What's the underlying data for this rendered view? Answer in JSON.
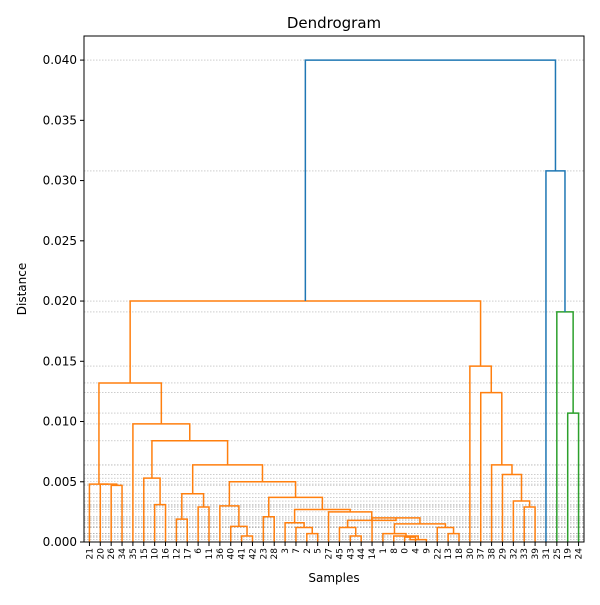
{
  "chart_data": {
    "type": "dendrogram",
    "title": "Dendrogram",
    "xlabel": "Samples",
    "ylabel": "Distance",
    "ylim": [
      0,
      0.042
    ],
    "yticks": [
      "0.000",
      "0.005",
      "0.010",
      "0.015",
      "0.020",
      "0.025",
      "0.030",
      "0.035",
      "0.040"
    ],
    "yticks_values": [
      0,
      0.005,
      0.01,
      0.015,
      0.02,
      0.025,
      0.03,
      0.035,
      0.04
    ],
    "leaf_order": [
      "21",
      "20",
      "26",
      "34",
      "35",
      "15",
      "10",
      "16",
      "12",
      "17",
      "6",
      "11",
      "36",
      "40",
      "41",
      "42",
      "23",
      "28",
      "3",
      "7",
      "2",
      "5",
      "27",
      "45",
      "43",
      "44",
      "14",
      "1",
      "8",
      "0",
      "4",
      "9",
      "22",
      "13",
      "18",
      "30",
      "37",
      "38",
      "29",
      "32",
      "33",
      "39",
      "31",
      "25",
      "19",
      "24"
    ],
    "grid_y": true,
    "colors": {
      "orange": "#ff7f0e",
      "blue": "#1f77b4",
      "green": "#2ca02c",
      "grid": "#b0b0b0"
    },
    "merges": [
      {
        "id": "M1",
        "left": "0",
        "right": "4",
        "height": 0.0004,
        "color": "orange"
      },
      {
        "id": "M2",
        "left": "M1",
        "right": "9",
        "height": 0.0002,
        "color": "orange"
      },
      {
        "id": "M3",
        "left": "8",
        "right": "M2",
        "height": 0.0005,
        "color": "orange"
      },
      {
        "id": "M4",
        "left": "1",
        "right": "M3",
        "height": 0.0007,
        "color": "orange"
      },
      {
        "id": "M5",
        "left": "13",
        "right": "18",
        "height": 0.0007,
        "color": "orange"
      },
      {
        "id": "M6",
        "left": "22",
        "right": "M5",
        "height": 0.0012,
        "color": "orange"
      },
      {
        "id": "M7",
        "left": "M4",
        "right": "M6",
        "height": 0.0015,
        "color": "orange"
      },
      {
        "id": "M8",
        "left": "14",
        "right": "M7",
        "height": 0.002,
        "color": "orange"
      },
      {
        "id": "M9",
        "left": "43",
        "right": "44",
        "height": 0.0005,
        "color": "orange"
      },
      {
        "id": "M10",
        "left": "45",
        "right": "M9",
        "height": 0.0012,
        "color": "orange"
      },
      {
        "id": "M11",
        "left": "M10",
        "right": "M8",
        "height": 0.0018,
        "color": "orange"
      },
      {
        "id": "M12",
        "left": "27",
        "right": "M11",
        "height": 0.0025,
        "color": "orange"
      },
      {
        "id": "M13",
        "left": "2",
        "right": "5",
        "height": 0.0007,
        "color": "orange"
      },
      {
        "id": "M14",
        "left": "7",
        "right": "M13",
        "height": 0.0012,
        "color": "orange"
      },
      {
        "id": "M15",
        "left": "3",
        "right": "M14",
        "height": 0.0016,
        "color": "orange"
      },
      {
        "id": "M16",
        "left": "M15",
        "right": "M12",
        "height": 0.0027,
        "color": "orange"
      },
      {
        "id": "M17",
        "left": "23",
        "right": "28",
        "height": 0.0021,
        "color": "orange"
      },
      {
        "id": "M18",
        "left": "M17",
        "right": "M16",
        "height": 0.0037,
        "color": "orange"
      },
      {
        "id": "M19",
        "left": "42",
        "right": "41",
        "height": 0.0005,
        "color": "orange"
      },
      {
        "id": "M20",
        "left": "40",
        "right": "M19",
        "height": 0.0013,
        "color": "orange"
      },
      {
        "id": "M21",
        "left": "36",
        "right": "M20",
        "height": 0.003,
        "color": "orange"
      },
      {
        "id": "M22",
        "left": "M21",
        "right": "M18",
        "height": 0.005,
        "color": "orange"
      },
      {
        "id": "M23",
        "left": "6",
        "right": "11",
        "height": 0.0029,
        "color": "orange"
      },
      {
        "id": "M24",
        "left": "12",
        "right": "17",
        "height": 0.0019,
        "color": "orange"
      },
      {
        "id": "M25",
        "left": "M24",
        "right": "M23",
        "height": 0.004,
        "color": "orange"
      },
      {
        "id": "M26",
        "left": "M25",
        "right": "M22",
        "height": 0.0064,
        "color": "orange"
      },
      {
        "id": "M27",
        "left": "10",
        "right": "16",
        "height": 0.0031,
        "color": "orange"
      },
      {
        "id": "M28",
        "left": "15",
        "right": "M27",
        "height": 0.0053,
        "color": "orange"
      },
      {
        "id": "M29",
        "left": "M28",
        "right": "M26",
        "height": 0.0084,
        "color": "orange"
      },
      {
        "id": "M30",
        "left": "35",
        "right": "M29",
        "height": 0.0098,
        "color": "orange"
      },
      {
        "id": "M31",
        "left": "26",
        "right": "34",
        "height": 0.0047,
        "color": "orange"
      },
      {
        "id": "M32",
        "left": "20",
        "right": "M31",
        "height": 0.0048,
        "color": "orange"
      },
      {
        "id": "M33",
        "left": "21",
        "right": "M32",
        "height": 0.0048,
        "color": "orange"
      },
      {
        "id": "M34",
        "left": "M33",
        "right": "M30",
        "height": 0.0132,
        "color": "orange"
      },
      {
        "id": "M35",
        "left": "33",
        "right": "39",
        "height": 0.0029,
        "color": "orange"
      },
      {
        "id": "M36",
        "left": "32",
        "right": "M35",
        "height": 0.0034,
        "color": "orange"
      },
      {
        "id": "M37",
        "left": "29",
        "right": "M36",
        "height": 0.0056,
        "color": "orange"
      },
      {
        "id": "M38",
        "left": "38",
        "right": "M37",
        "height": 0.0064,
        "color": "orange"
      },
      {
        "id": "M39",
        "left": "37",
        "right": "M38",
        "height": 0.0124,
        "color": "orange"
      },
      {
        "id": "M40",
        "left": "30",
        "right": "M39",
        "height": 0.0146,
        "color": "orange"
      },
      {
        "id": "M41",
        "left": "M34",
        "right": "M40",
        "height": 0.02,
        "color": "orange"
      },
      {
        "id": "M42",
        "left": "19",
        "right": "24",
        "height": 0.0107,
        "color": "green"
      },
      {
        "id": "M43",
        "left": "25",
        "right": "M42",
        "height": 0.0191,
        "color": "green"
      },
      {
        "id": "M44",
        "left": "31",
        "right": "M43",
        "height": 0.0308,
        "color": "blue"
      },
      {
        "id": "M45",
        "left": "M41",
        "right": "M44",
        "height": 0.04,
        "color": "blue"
      }
    ]
  }
}
